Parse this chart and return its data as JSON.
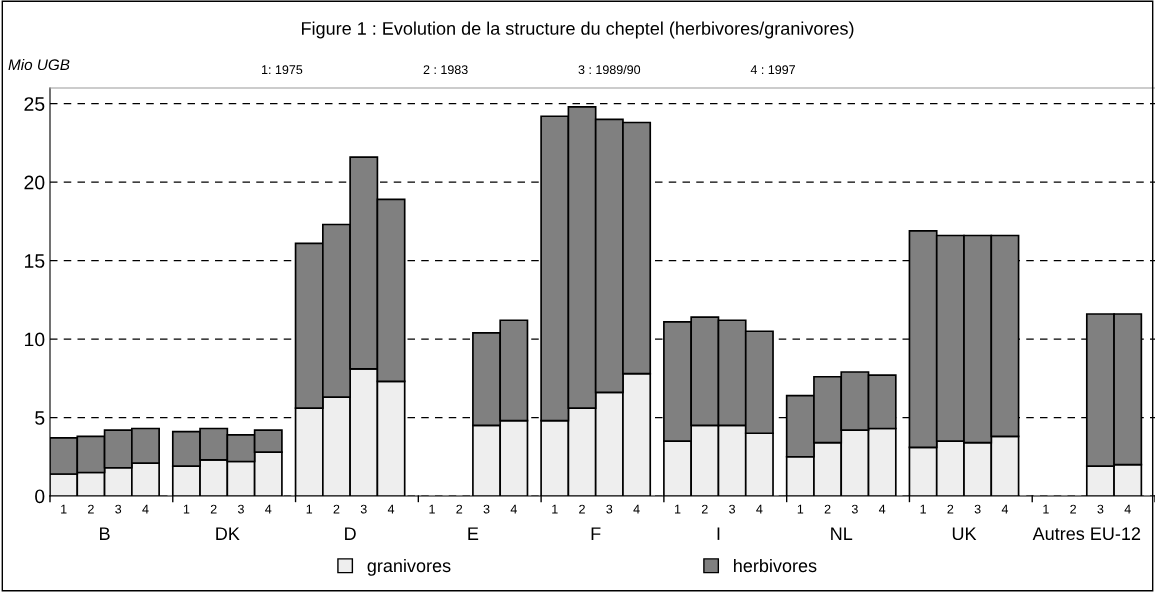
{
  "chart_data": {
    "type": "bar",
    "title": "Figure 1 : Evolution de la structure du cheptel (herbivores/granivores)",
    "ylabel": "Mio UGB",
    "categories": [
      "1",
      "2",
      "3",
      "4",
      "1",
      "2",
      "3",
      "4",
      "1",
      "2",
      "3",
      "4",
      "1",
      "2",
      "3",
      "4",
      "1",
      "2",
      "3",
      "4",
      "1",
      "2",
      "3",
      "4",
      "1",
      "2",
      "3",
      "4",
      "1",
      "2",
      "3",
      "4",
      "1",
      "2",
      "3",
      "4"
    ],
    "stacked": true,
    "ylim": [
      0,
      26
    ],
    "yticks": [
      0,
      5,
      10,
      15,
      20,
      25
    ],
    "grid": "y",
    "legend": "bottom",
    "series": [
      {
        "name": "granivores",
        "color": "#eeeeee",
        "values": [
          1.4,
          1.5,
          1.8,
          2.1,
          1.9,
          2.3,
          2.2,
          2.8,
          5.6,
          6.3,
          8.1,
          7.3,
          null,
          null,
          4.5,
          4.8,
          4.8,
          5.6,
          6.6,
          7.8,
          3.5,
          4.5,
          4.5,
          4.0,
          2.5,
          3.4,
          4.2,
          4.3,
          3.1,
          3.5,
          3.4,
          3.8,
          null,
          null,
          1.9,
          2.0
        ]
      },
      {
        "name": "herbivores",
        "color": "#808080",
        "values": [
          2.3,
          2.3,
          2.4,
          2.2,
          2.2,
          2.0,
          1.7,
          1.4,
          10.5,
          11.0,
          13.5,
          11.6,
          null,
          null,
          5.9,
          6.4,
          19.4,
          19.2,
          17.4,
          16.0,
          7.6,
          6.9,
          6.7,
          6.5,
          3.9,
          4.2,
          3.7,
          3.4,
          13.8,
          13.1,
          13.2,
          12.8,
          null,
          null,
          9.7,
          9.6
        ]
      }
    ],
    "annotations": [
      "B",
      "DK",
      "D",
      "E",
      "F",
      "I",
      "NL",
      "UK",
      "Autres EU-12",
      "1: 1975",
      "2 : 1983",
      "3 : 1989/90",
      "4 : 1997"
    ]
  }
}
